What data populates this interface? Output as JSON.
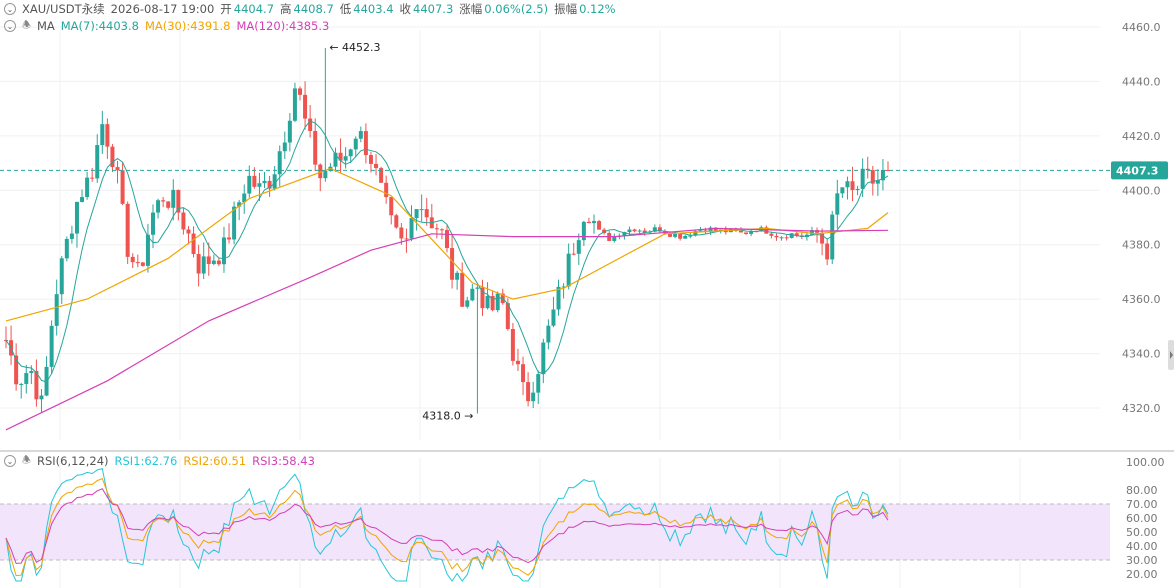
{
  "header": {
    "symbol": "XAU/USDT永续",
    "datetime": "2026-08-17 19:00",
    "open_label": "开",
    "open": "4404.7",
    "high_label": "高",
    "high": "4408.7",
    "low_label": "低",
    "low": "4403.4",
    "close_label": "收",
    "close": "4407.3",
    "change_label": "涨幅",
    "change": "0.06%(2.5)",
    "amplitude_label": "振幅",
    "amplitude": "0.12%"
  },
  "ma_row": {
    "name": "MA",
    "ma7": "MA(7):4403.8",
    "ma30": "MA(30):4391.8",
    "ma120": "MA(120):4385.3"
  },
  "rsi_row": {
    "name": "RSI(6,12,24)",
    "rsi1": "RSI1:62.76",
    "rsi2": "RSI2:60.51",
    "rsi3": "RSI3:58.43"
  },
  "colors": {
    "up": "#26a69a",
    "down": "#ef5350",
    "ma7": "#26a69a",
    "ma30": "#f0a500",
    "ma120": "#d63fb5",
    "rsi1": "#26c6da",
    "rsi2": "#f0a500",
    "rsi3": "#d63fb5",
    "rsi_band": "#f1e4fb",
    "grid": "#f0f0f0"
  },
  "annotations": {
    "high_mark": "4452.3",
    "low_mark": "4318.0"
  },
  "chart_data": [
    {
      "type": "candlestick",
      "ylim": [
        4310,
        4465
      ],
      "yticks": [
        "4320.0",
        "4340.0",
        "4360.0",
        "4380.0",
        "4400.0",
        "4420.0",
        "4440.0",
        "4460.0"
      ],
      "last_price": "4407.3",
      "shape": [
        [
          0,
          4345
        ],
        [
          1,
          4330
        ],
        [
          2,
          4335
        ],
        [
          3,
          4320
        ],
        [
          4,
          4360
        ],
        [
          5,
          4380
        ],
        [
          6,
          4398
        ],
        [
          7,
          4405
        ],
        [
          8,
          4425
        ],
        [
          9,
          4410
        ],
        [
          10,
          4380
        ],
        [
          11,
          4368
        ],
        [
          12,
          4390
        ],
        [
          13,
          4398
        ],
        [
          14,
          4395
        ],
        [
          15,
          4385
        ],
        [
          16,
          4372
        ],
        [
          17,
          4375
        ],
        [
          18,
          4378
        ],
        [
          19,
          4392
        ],
        [
          20,
          4405
        ],
        [
          21,
          4400
        ],
        [
          22,
          4405
        ],
        [
          23,
          4420
        ],
        [
          24,
          4440
        ],
        [
          25,
          4420
        ],
        [
          26,
          4405
        ],
        [
          27,
          4410
        ],
        [
          28,
          4412
        ],
        [
          29,
          4422
        ],
        [
          30,
          4415
        ],
        [
          31,
          4400
        ],
        [
          32,
          4385
        ],
        [
          33,
          4378
        ],
        [
          34,
          4398
        ],
        [
          35,
          4390
        ],
        [
          36,
          4385
        ],
        [
          37,
          4368
        ],
        [
          38,
          4360
        ],
        [
          39,
          4365
        ],
        [
          40,
          4355
        ],
        [
          41,
          4360
        ],
        [
          42,
          4340
        ],
        [
          43,
          4322
        ],
        [
          44,
          4335
        ],
        [
          45,
          4350
        ],
        [
          46,
          4365
        ],
        [
          47,
          4380
        ],
        [
          48,
          4395
        ],
        [
          49,
          4385
        ],
        [
          50,
          4382
        ],
        [
          51,
          4385
        ],
        [
          52,
          4386
        ],
        [
          53,
          4385
        ],
        [
          54,
          4386
        ],
        [
          55,
          4384
        ],
        [
          56,
          4383
        ],
        [
          57,
          4385
        ],
        [
          58,
          4386
        ],
        [
          59,
          4385
        ],
        [
          60,
          4385
        ],
        [
          61,
          4384
        ],
        [
          62,
          4386
        ],
        [
          63,
          4385
        ],
        [
          64,
          4383
        ],
        [
          65,
          4384
        ],
        [
          66,
          4383
        ],
        [
          67,
          4385
        ],
        [
          68,
          4378
        ],
        [
          69,
          4402
        ],
        [
          70,
          4398
        ],
        [
          71,
          4404
        ],
        [
          72,
          4403
        ],
        [
          73,
          4407.3
        ]
      ],
      "ma30_curve": [
        [
          0,
          4352
        ],
        [
          8,
          4360
        ],
        [
          16,
          4375
        ],
        [
          24,
          4397
        ],
        [
          32,
          4408
        ],
        [
          38,
          4398
        ],
        [
          42,
          4382
        ],
        [
          46,
          4366
        ],
        [
          50,
          4360
        ],
        [
          55,
          4364
        ],
        [
          60,
          4374
        ],
        [
          65,
          4384
        ],
        [
          70,
          4385
        ],
        [
          75,
          4386
        ],
        [
          80,
          4384
        ],
        [
          85,
          4386
        ],
        [
          87,
          4391.8
        ]
      ],
      "ma120_curve": [
        [
          0,
          4312
        ],
        [
          10,
          4330
        ],
        [
          20,
          4352
        ],
        [
          30,
          4368
        ],
        [
          36,
          4378
        ],
        [
          42,
          4384
        ],
        [
          50,
          4383
        ],
        [
          60,
          4383
        ],
        [
          70,
          4386
        ],
        [
          80,
          4385
        ],
        [
          87,
          4385.3
        ]
      ]
    },
    {
      "type": "line",
      "ylim": [
        20,
        100
      ],
      "yticks": [
        "20.00",
        "30.00",
        "40.00",
        "50.00",
        "60.00",
        "70.00",
        "80.00",
        "100.00"
      ],
      "band": [
        30,
        70
      ],
      "series": [
        {
          "name": "RSI1",
          "last": 62.76
        },
        {
          "name": "RSI2",
          "last": 60.51
        },
        {
          "name": "RSI3",
          "last": 58.43
        }
      ]
    }
  ]
}
